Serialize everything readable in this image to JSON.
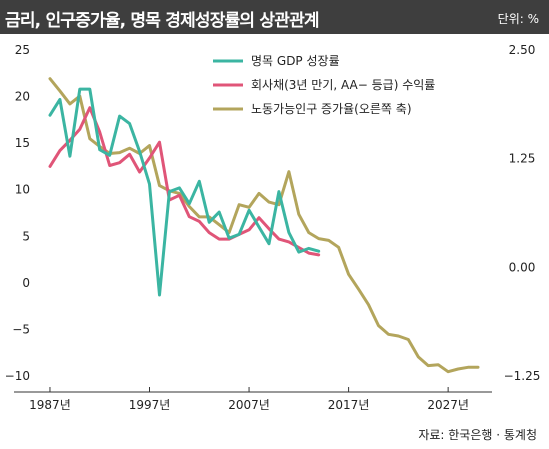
{
  "header": {
    "title": "금리, 인구증가율, 명목 경제성장률의 상관관계",
    "unit": "단위: %"
  },
  "source": "자료: 한국은행 · 통계청",
  "colors": {
    "gdp": "#3bb5a2",
    "rate": "#e05578",
    "labor": "#b3a55c",
    "header_bg": "#3e3e3e"
  },
  "chart_data": {
    "type": "line",
    "title": "",
    "xlabel": "",
    "ylabel": "",
    "x_ticks": [
      "1987년",
      "1997년",
      "2007년",
      "2017년",
      "2027년"
    ],
    "x_tick_values": [
      1987,
      1997,
      2007,
      2017,
      2027
    ],
    "xlim": [
      1986.2,
      2030
    ],
    "y_left_ticks": [
      "25",
      "20",
      "15",
      "10",
      "5",
      "0",
      "−5",
      "−10"
    ],
    "y_left_tick_values": [
      25,
      20,
      15,
      10,
      5,
      0,
      -5,
      -10
    ],
    "ylim_left": [
      -10,
      25
    ],
    "y_right_ticks": [
      "2.50",
      "1.25",
      "0.00",
      "−1.25"
    ],
    "y_right_tick_values": [
      2.5,
      1.25,
      0,
      -1.25
    ],
    "ylim_right": [
      -1.25,
      2.5
    ],
    "grid": false,
    "legend_position": "top-center",
    "series": [
      {
        "name": "명목 GDP 성장률",
        "axis": "left",
        "color": "#3bb5a2",
        "x": [
          1987,
          1988,
          1989,
          1990,
          1991,
          1992,
          1993,
          1994,
          1995,
          1996,
          1997,
          1998,
          1999,
          2000,
          2001,
          2002,
          2003,
          2004,
          2005,
          2006,
          2007,
          2008,
          2009,
          2010,
          2011,
          2012,
          2013,
          2014
        ],
        "values": [
          18,
          19.7,
          13.6,
          20.8,
          20.8,
          14.3,
          13.7,
          17.9,
          17.1,
          14.1,
          10.6,
          -1.3,
          9.8,
          10.2,
          8.5,
          10.9,
          6.5,
          7.6,
          4.8,
          5.2,
          7.8,
          6,
          4.2,
          9.8,
          5.4,
          3.3,
          3.7,
          3.4
        ]
      },
      {
        "name": "회사채(3년 만기, AA− 등급) 수익률",
        "axis": "left",
        "color": "#e05578",
        "x": [
          1987,
          1988,
          1989,
          1990,
          1991,
          1992,
          1993,
          1994,
          1995,
          1996,
          1997,
          1998,
          1999,
          2000,
          2001,
          2002,
          2003,
          2004,
          2005,
          2006,
          2007,
          2008,
          2009,
          2010,
          2011,
          2012,
          2013,
          2014
        ],
        "values": [
          12.5,
          14.2,
          15.3,
          16.5,
          18.8,
          16.2,
          12.6,
          12.9,
          13.8,
          11.9,
          13.4,
          15.1,
          8.9,
          9.4,
          7.1,
          6.6,
          5.4,
          4.7,
          4.7,
          5.2,
          5.7,
          7.0,
          5.8,
          4.7,
          4.4,
          3.8,
          3.2,
          3.0
        ]
      },
      {
        "name": "노동가능인구 증가율(오른쪽 축)",
        "axis": "right",
        "color": "#b3a55c",
        "x": [
          1987,
          1988,
          1989,
          1990,
          1991,
          1992,
          1993,
          1994,
          1995,
          1996,
          1997,
          1998,
          1999,
          2000,
          2001,
          2002,
          2003,
          2004,
          2005,
          2006,
          2007,
          2008,
          2009,
          2010,
          2011,
          2012,
          2013,
          2014,
          2015,
          2016,
          2017,
          2018,
          2019,
          2020,
          2021,
          2022,
          2023,
          2024,
          2025,
          2026,
          2027,
          2028,
          2029,
          2030
        ],
        "values": [
          2.17,
          2.03,
          1.88,
          1.97,
          1.48,
          1.39,
          1.31,
          1.32,
          1.37,
          1.31,
          1.4,
          0.94,
          0.88,
          0.85,
          0.7,
          0.58,
          0.58,
          0.49,
          0.4,
          0.72,
          0.69,
          0.85,
          0.75,
          0.72,
          1.1,
          0.61,
          0.4,
          0.33,
          0.31,
          0.23,
          -0.08,
          -0.25,
          -0.43,
          -0.67,
          -0.77,
          -0.79,
          -0.83,
          -1.03,
          -1.13,
          -1.12,
          -1.2,
          -1.17,
          -1.15,
          -1.15
        ]
      }
    ]
  }
}
